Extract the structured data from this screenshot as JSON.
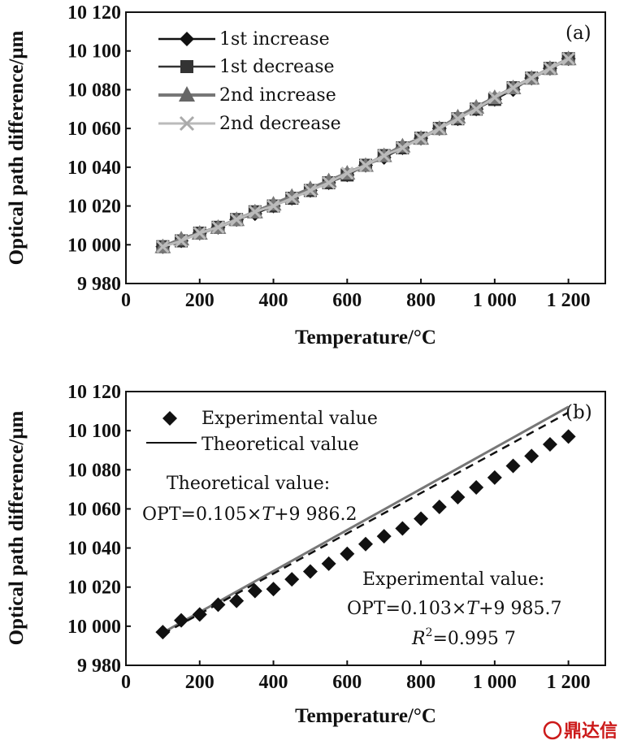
{
  "watermark": "鼎达信",
  "chart_data": [
    {
      "type": "line",
      "panel_label": "(a)",
      "xlabel": "Temperature/°C",
      "ylabel": "Optical path difference/μm",
      "xlim": [
        0,
        1300
      ],
      "ylim": [
        9980,
        10120
      ],
      "xticks": [
        0,
        200,
        400,
        600,
        800,
        1000,
        1200
      ],
      "xtick_labels": [
        "0",
        "200",
        "400",
        "600",
        "800",
        "1 000",
        "1 200"
      ],
      "yticks": [
        9980,
        10000,
        10020,
        10040,
        10060,
        10080,
        10100,
        10120
      ],
      "ytick_labels": [
        "9 980",
        "10 000",
        "10 020",
        "10 040",
        "10 060",
        "10 080",
        "10 100",
        "10 120"
      ],
      "legend_position": "top-left",
      "x": [
        100,
        150,
        200,
        250,
        300,
        350,
        400,
        450,
        500,
        550,
        600,
        650,
        700,
        750,
        800,
        850,
        900,
        950,
        1000,
        1050,
        1100,
        1150,
        1200
      ],
      "series": [
        {
          "name": "1st increase",
          "marker": "diamond",
          "color": "#111111",
          "values": [
            9999,
            10002,
            10006,
            10009,
            10013,
            10016,
            10020,
            10024,
            10028,
            10032,
            10036,
            10041,
            10045,
            10050,
            10055,
            10060,
            10065,
            10070,
            10075,
            10080,
            10086,
            10091,
            10096
          ]
        },
        {
          "name": "1st decrease",
          "marker": "square",
          "color": "#333333",
          "values": [
            9999,
            10002,
            10006,
            10009,
            10013,
            10017,
            10020,
            10024,
            10028,
            10032,
            10036,
            10041,
            10046,
            10050,
            10055,
            10060,
            10065,
            10070,
            10075,
            10081,
            10086,
            10091,
            10096
          ]
        },
        {
          "name": "2nd increase",
          "marker": "triangle",
          "color": "#777777",
          "values": [
            9999,
            10003,
            10006,
            10009,
            10013,
            10017,
            10021,
            10025,
            10029,
            10033,
            10037,
            10041,
            10046,
            10051,
            10055,
            10060,
            10066,
            10071,
            10076,
            10081,
            10086,
            10091,
            10096
          ]
        },
        {
          "name": "2nd decrease",
          "marker": "x",
          "color": "#bbbbbb",
          "values": [
            9999,
            10002,
            10006,
            10009,
            10013,
            10017,
            10020,
            10024,
            10028,
            10032,
            10037,
            10041,
            10046,
            10050,
            10055,
            10060,
            10065,
            10070,
            10076,
            10081,
            10086,
            10091,
            10096
          ]
        }
      ]
    },
    {
      "type": "scatter",
      "panel_label": "(b)",
      "xlabel": "Temperature/°C",
      "ylabel": "Optical path difference/μm",
      "xlim": [
        0,
        1300
      ],
      "ylim": [
        9980,
        10120
      ],
      "xticks": [
        0,
        200,
        400,
        600,
        800,
        1000,
        1200
      ],
      "xtick_labels": [
        "0",
        "200",
        "400",
        "600",
        "800",
        "1 000",
        "1 200"
      ],
      "yticks": [
        9980,
        10000,
        10020,
        10040,
        10060,
        10080,
        10100,
        10120
      ],
      "ytick_labels": [
        "9 980",
        "10 000",
        "10 020",
        "10 040",
        "10 060",
        "10 080",
        "10 100",
        "10 120"
      ],
      "legend_position": "top-left",
      "legend": [
        "Experimental value",
        "Theoretical value"
      ],
      "experimental": {
        "name": "Experimental value",
        "x": [
          100,
          150,
          200,
          250,
          300,
          350,
          400,
          450,
          500,
          550,
          600,
          650,
          700,
          750,
          800,
          850,
          900,
          950,
          1000,
          1050,
          1100,
          1150,
          1200
        ],
        "values": [
          9997,
          10003,
          10006,
          10011,
          10013,
          10018,
          10019,
          10024,
          10028,
          10032,
          10037,
          10042,
          10046,
          10050,
          10055,
          10061,
          10066,
          10071,
          10076,
          10082,
          10087,
          10093,
          10097
        ]
      },
      "theoretical": {
        "name": "Theoretical value",
        "slope": 0.105,
        "intercept": 9986.2,
        "x_range": [
          100,
          1200
        ],
        "color": "#777777"
      },
      "experimental_fit": {
        "slope": 0.103,
        "intercept": 9985.7
      },
      "annotations": {
        "theoretical_title": "Theoretical value:",
        "theoretical_eq_prefix": "OPT=0.105×",
        "theoretical_eq_var": "T",
        "theoretical_eq_suffix": "+9 986.2",
        "experimental_title": "Experimental value:",
        "experimental_eq_prefix": "OPT=0.103×",
        "experimental_eq_var": "T",
        "experimental_eq_suffix": "+9 985.7",
        "r2_var": "R",
        "r2_sup": "2",
        "r2_value": "=0.995 7"
      }
    }
  ]
}
